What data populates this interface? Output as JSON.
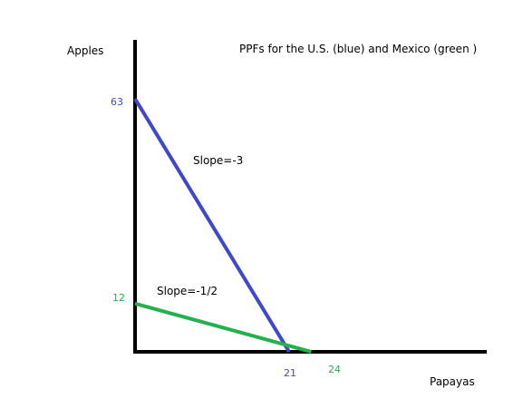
{
  "chart_data": {
    "type": "line",
    "title": "PPFs for the U.S. (blue) and Mexico (green )",
    "xlabel": "Papayas",
    "ylabel": "Apples",
    "series": [
      {
        "color": "#3f48cc",
        "points": [
          [
            0,
            63
          ],
          [
            21,
            0
          ]
        ],
        "slope_label": "Slope=-3",
        "y_intercept_label": "63",
        "x_intercept_label": "21"
      },
      {
        "color": "#22b14c",
        "points": [
          [
            0,
            12
          ],
          [
            24,
            0
          ]
        ],
        "slope_label": "Slope=-1/2",
        "y_intercept_label": "12",
        "x_intercept_label": "24"
      }
    ],
    "grid": false
  }
}
